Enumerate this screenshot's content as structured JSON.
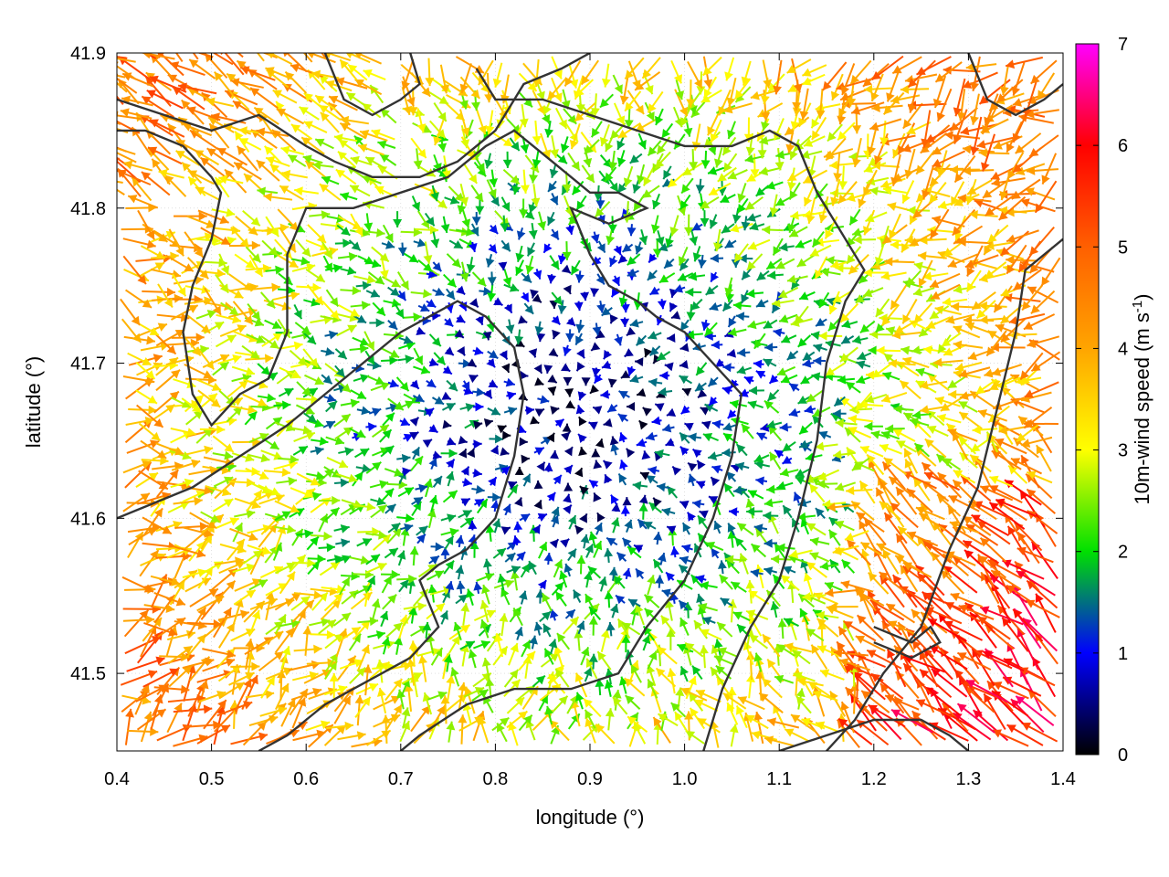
{
  "chart_data": {
    "type": "vector-field",
    "xlabel": "longitude (°)",
    "ylabel": "latitude (°)",
    "xlim": [
      0.4,
      1.4
    ],
    "ylim": [
      41.45,
      41.9
    ],
    "xticks": [
      "0.4",
      "0.5",
      "0.6",
      "0.7",
      "0.8",
      "0.9",
      "1.0",
      "1.1",
      "1.2",
      "1.3",
      "1.4"
    ],
    "yticks": [
      "41.5",
      "41.6",
      "41.7",
      "41.8",
      "41.9"
    ],
    "grid": true,
    "colorbar": {
      "label_main": "10m-wind speed (m s",
      "label_sup": "-1",
      "label_end": ")",
      "range": [
        0,
        7
      ],
      "ticks": [
        "0",
        "1",
        "2",
        "3",
        "4",
        "5",
        "6",
        "7"
      ],
      "palette": [
        "#000000",
        "#0000ff",
        "#00e000",
        "#ffff00",
        "#ffa500",
        "#ff6000",
        "#ff0000",
        "#ff00ff"
      ]
    },
    "calm_basin_center": [
      0.89,
      41.67
    ],
    "contours": [
      [
        [
          0.4,
          41.85
        ],
        [
          0.43,
          41.85
        ],
        [
          0.47,
          41.84
        ],
        [
          0.5,
          41.82
        ],
        [
          0.51,
          41.81
        ],
        [
          0.5,
          41.78
        ],
        [
          0.48,
          41.75
        ],
        [
          0.47,
          41.72
        ],
        [
          0.48,
          41.68
        ],
        [
          0.5,
          41.66
        ],
        [
          0.53,
          41.68
        ],
        [
          0.56,
          41.69
        ],
        [
          0.58,
          41.72
        ],
        [
          0.58,
          41.77
        ],
        [
          0.6,
          41.8
        ],
        [
          0.65,
          41.8
        ],
        [
          0.7,
          41.81
        ],
        [
          0.75,
          41.82
        ],
        [
          0.79,
          41.84
        ],
        [
          0.82,
          41.85
        ],
        [
          0.86,
          41.83
        ],
        [
          0.9,
          41.81
        ],
        [
          0.93,
          41.81
        ],
        [
          0.96,
          41.8
        ],
        [
          0.92,
          41.79
        ],
        [
          0.88,
          41.8
        ],
        [
          0.9,
          41.77
        ],
        [
          0.92,
          41.75
        ],
        [
          0.95,
          41.74
        ],
        [
          0.97,
          41.73
        ],
        [
          1.0,
          41.72
        ],
        [
          1.03,
          41.7
        ],
        [
          1.06,
          41.68
        ],
        [
          1.05,
          41.64
        ],
        [
          1.03,
          41.6
        ],
        [
          1.0,
          41.56
        ],
        [
          0.96,
          41.53
        ],
        [
          0.93,
          41.5
        ],
        [
          0.88,
          41.49
        ],
        [
          0.82,
          41.49
        ],
        [
          0.77,
          41.48
        ],
        [
          0.72,
          41.46
        ],
        [
          0.7,
          41.45
        ]
      ],
      [
        [
          0.4,
          41.87
        ],
        [
          0.45,
          41.86
        ],
        [
          0.5,
          41.85
        ],
        [
          0.55,
          41.86
        ],
        [
          0.6,
          41.84
        ],
        [
          0.63,
          41.83
        ],
        [
          0.67,
          41.82
        ],
        [
          0.72,
          41.82
        ],
        [
          0.76,
          41.83
        ],
        [
          0.8,
          41.85
        ],
        [
          0.83,
          41.88
        ],
        [
          0.87,
          41.89
        ],
        [
          0.9,
          41.9
        ]
      ],
      [
        [
          0.62,
          41.9
        ],
        [
          0.64,
          41.87
        ],
        [
          0.67,
          41.86
        ],
        [
          0.7,
          41.87
        ],
        [
          0.72,
          41.88
        ],
        [
          0.71,
          41.9
        ]
      ],
      [
        [
          0.4,
          41.6
        ],
        [
          0.44,
          41.61
        ],
        [
          0.48,
          41.62
        ],
        [
          0.53,
          41.64
        ],
        [
          0.58,
          41.66
        ],
        [
          0.62,
          41.68
        ],
        [
          0.66,
          41.7
        ],
        [
          0.7,
          41.72
        ],
        [
          0.73,
          41.73
        ],
        [
          0.76,
          41.74
        ],
        [
          0.79,
          41.73
        ],
        [
          0.82,
          41.71
        ],
        [
          0.83,
          41.68
        ],
        [
          0.82,
          41.64
        ],
        [
          0.8,
          41.6
        ],
        [
          0.77,
          41.58
        ],
        [
          0.74,
          41.57
        ],
        [
          0.72,
          41.56
        ],
        [
          0.74,
          41.53
        ],
        [
          0.71,
          41.51
        ],
        [
          0.68,
          41.5
        ],
        [
          0.65,
          41.49
        ],
        [
          0.62,
          41.48
        ],
        [
          0.6,
          41.47
        ],
        [
          0.58,
          41.46
        ],
        [
          0.55,
          41.45
        ]
      ],
      [
        [
          1.02,
          41.45
        ],
        [
          1.04,
          41.49
        ],
        [
          1.07,
          41.53
        ],
        [
          1.1,
          41.56
        ],
        [
          1.12,
          41.6
        ],
        [
          1.14,
          41.65
        ],
        [
          1.15,
          41.7
        ],
        [
          1.17,
          41.74
        ],
        [
          1.19,
          41.76
        ],
        [
          1.17,
          41.78
        ],
        [
          1.14,
          41.81
        ],
        [
          1.12,
          41.84
        ],
        [
          1.09,
          41.85
        ],
        [
          1.05,
          41.84
        ],
        [
          1.0,
          41.84
        ],
        [
          0.95,
          41.85
        ],
        [
          0.9,
          41.86
        ],
        [
          0.85,
          41.87
        ],
        [
          0.8,
          41.87
        ],
        [
          0.78,
          41.89
        ]
      ],
      [
        [
          1.15,
          41.45
        ],
        [
          1.18,
          41.47
        ],
        [
          1.21,
          41.5
        ],
        [
          1.25,
          41.53
        ],
        [
          1.28,
          41.58
        ],
        [
          1.31,
          41.62
        ],
        [
          1.33,
          41.67
        ],
        [
          1.35,
          41.72
        ],
        [
          1.36,
          41.76
        ],
        [
          1.38,
          41.77
        ],
        [
          1.4,
          41.78
        ]
      ],
      [
        [
          1.1,
          41.45
        ],
        [
          1.15,
          41.46
        ],
        [
          1.2,
          41.47
        ],
        [
          1.25,
          41.47
        ],
        [
          1.28,
          41.46
        ],
        [
          1.3,
          41.45
        ]
      ],
      [
        [
          1.2,
          41.53
        ],
        [
          1.24,
          41.52
        ],
        [
          1.26,
          41.53
        ],
        [
          1.27,
          41.52
        ],
        [
          1.24,
          41.51
        ],
        [
          1.2,
          41.52
        ]
      ],
      [
        [
          1.3,
          41.9
        ],
        [
          1.32,
          41.87
        ],
        [
          1.35,
          41.86
        ],
        [
          1.38,
          41.87
        ],
        [
          1.4,
          41.88
        ]
      ]
    ]
  }
}
